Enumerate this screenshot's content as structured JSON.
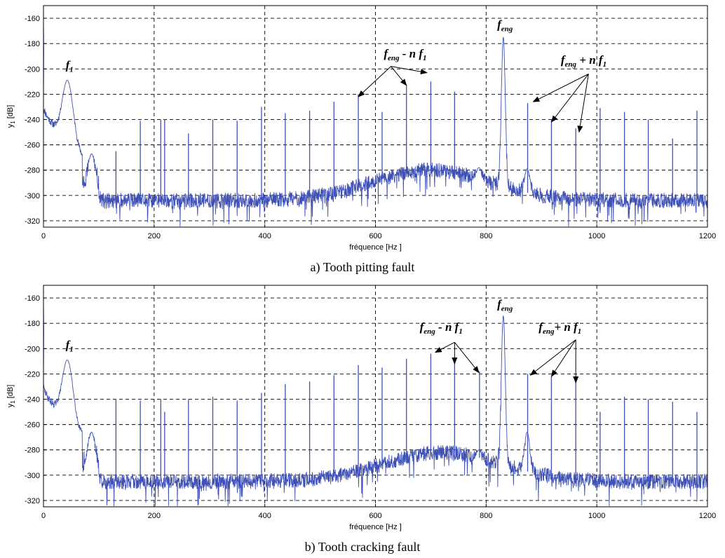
{
  "colors": {
    "trace": "#3f51b5",
    "grid": "#000000",
    "axis": "#000000"
  },
  "chart_data": [
    {
      "type": "line",
      "caption": "a) Tooth pitting fault",
      "xlabel": "fréquence",
      "xunit": "[Hz ]",
      "ylabel": "y",
      "ylabel_sub": "1",
      "yunit": "[dB]",
      "xlim": [
        0,
        1200
      ],
      "ylim": [
        -325,
        -150
      ],
      "xticks": [
        0,
        200,
        400,
        600,
        800,
        1000,
        1200
      ],
      "yticks": [
        -160,
        -180,
        -200,
        -220,
        -240,
        -260,
        -280,
        -300,
        -320
      ],
      "grid": true,
      "noise_floor": {
        "x_from": 100,
        "x_to": 1200,
        "level_db": -304,
        "hump_center_hz": 700,
        "hump_db": -280
      },
      "peaks": [
        {
          "x": 0,
          "y": -160
        },
        {
          "x": 43,
          "y": -209,
          "width_hz": 14
        },
        {
          "x": 87,
          "y": -267,
          "width_hz": 9
        },
        {
          "x": 131,
          "y": -265
        },
        {
          "x": 175,
          "y": -241
        },
        {
          "x": 212,
          "y": -240
        },
        {
          "x": 219,
          "y": -240
        },
        {
          "x": 262,
          "y": -251
        },
        {
          "x": 306,
          "y": -240
        },
        {
          "x": 350,
          "y": -241
        },
        {
          "x": 394,
          "y": -230
        },
        {
          "x": 437,
          "y": -235
        },
        {
          "x": 481,
          "y": -233
        },
        {
          "x": 525,
          "y": -226
        },
        {
          "x": 569,
          "y": -220
        },
        {
          "x": 612,
          "y": -234
        },
        {
          "x": 656,
          "y": -213
        },
        {
          "x": 700,
          "y": -210
        },
        {
          "x": 743,
          "y": -218
        },
        {
          "x": 787,
          "y": -278,
          "width_hz": 7
        },
        {
          "x": 831,
          "y": -175,
          "width_hz": 5
        },
        {
          "x": 874,
          "y": -279,
          "width_hz": 7
        },
        {
          "x": 875,
          "y": -227
        },
        {
          "x": 918,
          "y": -240
        },
        {
          "x": 962,
          "y": -247
        },
        {
          "x": 1006,
          "y": -231
        },
        {
          "x": 1050,
          "y": -234
        },
        {
          "x": 1093,
          "y": -240
        },
        {
          "x": 1137,
          "y": -255
        },
        {
          "x": 1181,
          "y": -233
        }
      ],
      "annotations": [
        {
          "base": "f",
          "sub": "1",
          "x": 40,
          "y": -200,
          "arrows": []
        },
        {
          "base": "f",
          "sub": "eng",
          "x": 820,
          "y": -168,
          "arrows": []
        },
        {
          "base": "f",
          "sub": "eng",
          "suffix": " - n f",
          "suffix_sub": "1",
          "x": 615,
          "y": -191,
          "origin": [
            628,
            -198
          ],
          "arrows": [
            [
              569,
              -222
            ],
            [
              656,
              -213
            ],
            [
              693,
              -203
            ]
          ]
        },
        {
          "base": "f",
          "sub": "eng",
          "suffix": " + n  f",
          "suffix_sub": "1",
          "x": 935,
          "y": -196,
          "origin": [
            985,
            -204
          ],
          "arrows": [
            [
              885,
              -226
            ],
            [
              918,
              -242
            ],
            [
              968,
              -250
            ]
          ]
        }
      ]
    },
    {
      "type": "line",
      "caption": "b) Tooth cracking fault",
      "xlabel": "fréquence",
      "xunit": "[Hz ]",
      "ylabel": "y",
      "ylabel_sub": "1",
      "yunit": "[dB]",
      "xlim": [
        0,
        1200
      ],
      "ylim": [
        -325,
        -150
      ],
      "xticks": [
        0,
        200,
        400,
        600,
        800,
        1000,
        1200
      ],
      "yticks": [
        -160,
        -180,
        -200,
        -220,
        -240,
        -260,
        -280,
        -300,
        -320
      ],
      "grid": true,
      "noise_floor": {
        "x_from": 100,
        "x_to": 1200,
        "level_db": -305,
        "hump_center_hz": 720,
        "hump_db": -282
      },
      "peaks": [
        {
          "x": 0,
          "y": -160
        },
        {
          "x": 43,
          "y": -209,
          "width_hz": 14
        },
        {
          "x": 87,
          "y": -266,
          "width_hz": 9
        },
        {
          "x": 131,
          "y": -240
        },
        {
          "x": 175,
          "y": -241
        },
        {
          "x": 212,
          "y": -240
        },
        {
          "x": 219,
          "y": -250
        },
        {
          "x": 262,
          "y": -240
        },
        {
          "x": 306,
          "y": -238
        },
        {
          "x": 350,
          "y": -241
        },
        {
          "x": 394,
          "y": -235
        },
        {
          "x": 437,
          "y": -228
        },
        {
          "x": 481,
          "y": -226
        },
        {
          "x": 525,
          "y": -221
        },
        {
          "x": 569,
          "y": -213
        },
        {
          "x": 612,
          "y": -215
        },
        {
          "x": 656,
          "y": -208
        },
        {
          "x": 700,
          "y": -204
        },
        {
          "x": 743,
          "y": -210
        },
        {
          "x": 787,
          "y": -280,
          "width_hz": 7
        },
        {
          "x": 788,
          "y": -218
        },
        {
          "x": 831,
          "y": -174,
          "width_hz": 5
        },
        {
          "x": 874,
          "y": -266,
          "width_hz": 7
        },
        {
          "x": 875,
          "y": -220
        },
        {
          "x": 918,
          "y": -222
        },
        {
          "x": 962,
          "y": -226
        },
        {
          "x": 1006,
          "y": -250
        },
        {
          "x": 1050,
          "y": -238
        },
        {
          "x": 1093,
          "y": -240
        },
        {
          "x": 1137,
          "y": -242
        },
        {
          "x": 1181,
          "y": -250
        }
      ],
      "annotations": [
        {
          "base": "f",
          "sub": "1",
          "x": 40,
          "y": -200,
          "arrows": []
        },
        {
          "base": "f",
          "sub": "eng",
          "x": 820,
          "y": -168,
          "arrows": []
        },
        {
          "base": "f",
          "sub": "eng",
          "suffix": " - n f",
          "suffix_sub": "1",
          "x": 680,
          "y": -186,
          "origin": [
            743,
            -195
          ],
          "arrows": [
            [
              708,
              -203
            ],
            [
              743,
              -212
            ],
            [
              787,
              -219
            ]
          ]
        },
        {
          "base": "f",
          "sub": "eng",
          "suffix": "+ n  f",
          "suffix_sub": "1",
          "x": 895,
          "y": -186,
          "origin": [
            962,
            -193
          ],
          "arrows": [
            [
              880,
              -221
            ],
            [
              918,
              -222
            ],
            [
              962,
              -227
            ]
          ]
        }
      ]
    }
  ]
}
